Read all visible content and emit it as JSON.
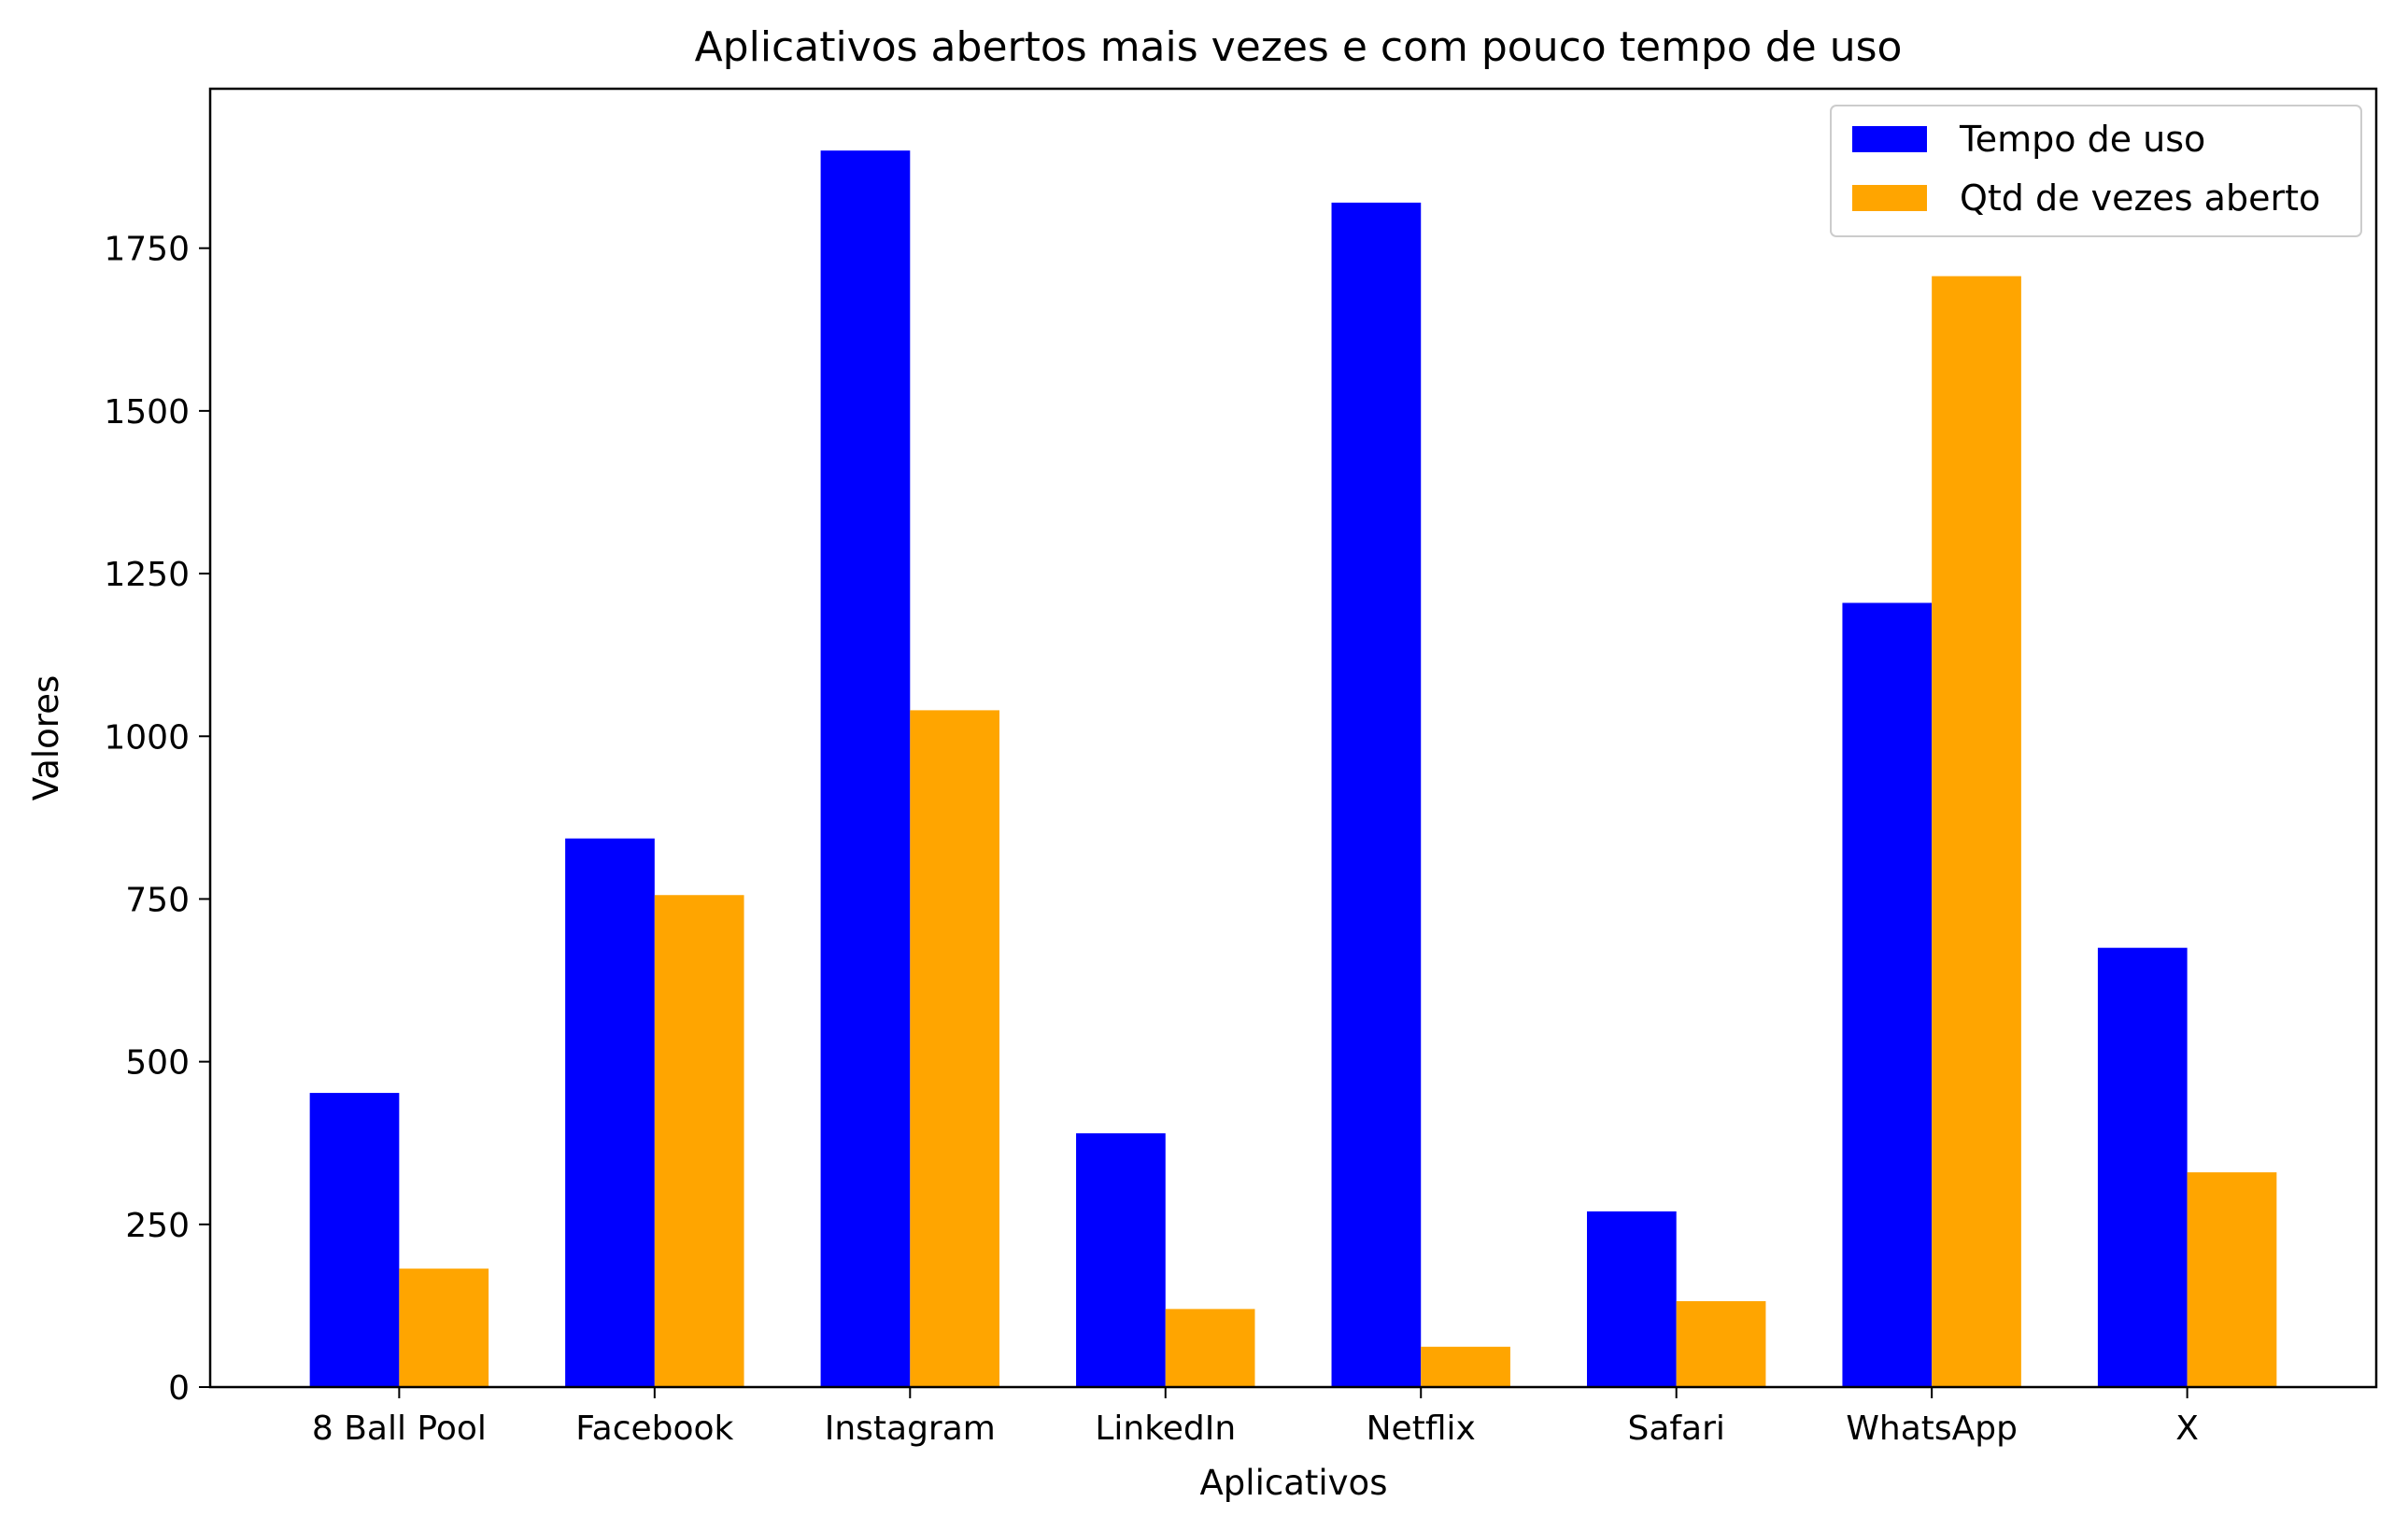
{
  "chart_data": {
    "type": "bar",
    "title": "Aplicativos abertos mais vezes e com pouco tempo de uso",
    "xlabel": "Aplicativos",
    "ylabel": "Valores",
    "categories": [
      "8 Ball Pool",
      "Facebook",
      "Instagram",
      "LinkedIn",
      "Netflix",
      "Safari",
      "WhatsApp",
      "X"
    ],
    "series": [
      {
        "name": "Tempo de uso",
        "color": "#0000ff",
        "values": [
          452,
          843,
          1900,
          390,
          1820,
          270,
          1205,
          675
        ]
      },
      {
        "name": "Qtd de vezes aberto",
        "color": "#ffa500",
        "values": [
          182,
          756,
          1040,
          120,
          62,
          132,
          1707,
          330
        ]
      }
    ],
    "ylim": [
      0,
      1995
    ],
    "yticks": [
      0,
      250,
      500,
      750,
      1000,
      1250,
      1500,
      1750
    ],
    "grid": false,
    "legend_position": "top-right"
  }
}
